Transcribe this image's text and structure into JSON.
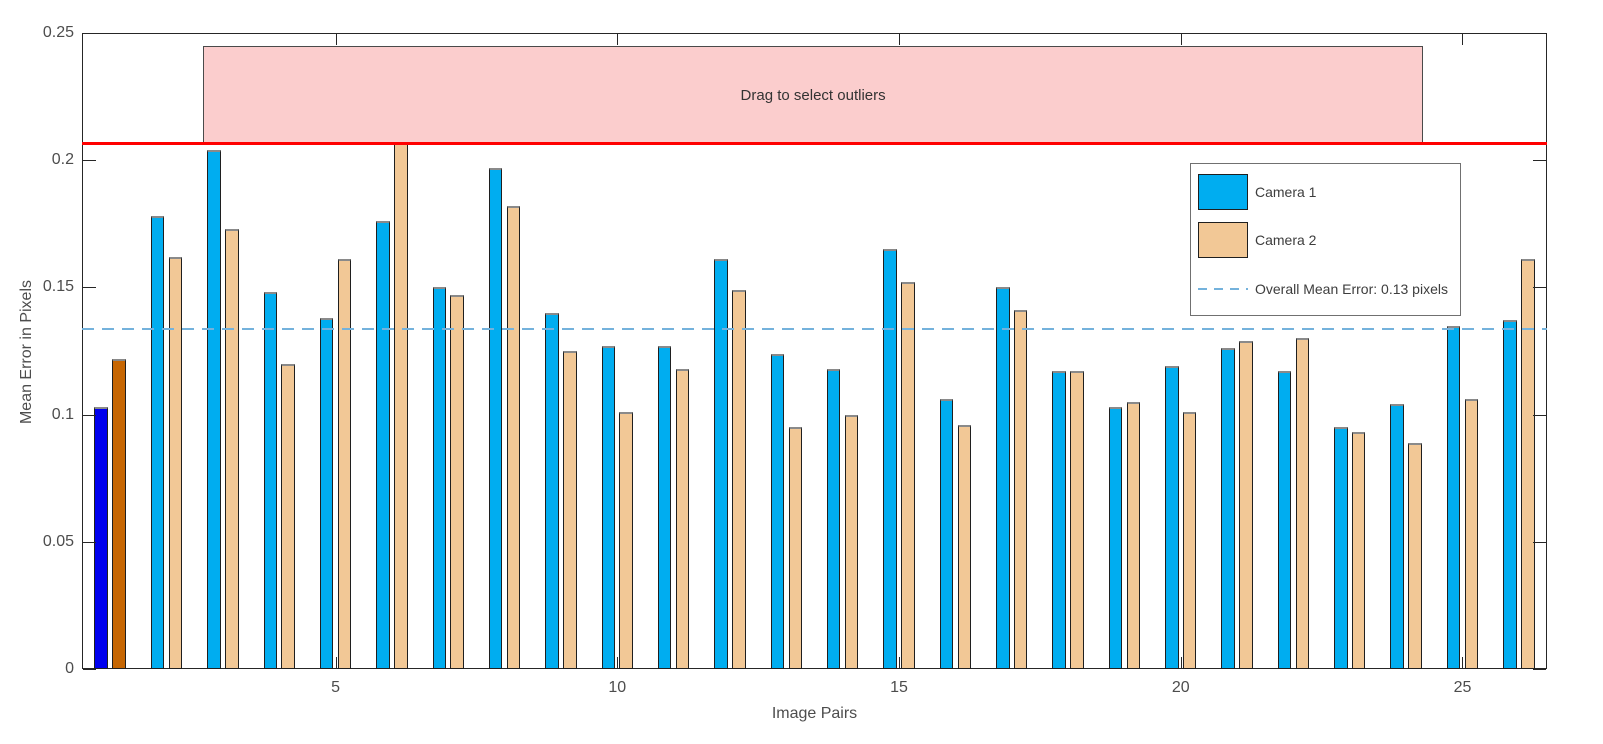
{
  "page": {
    "background": "#FFFFFF"
  },
  "chart_data": {
    "type": "bar",
    "title": "",
    "xlabel": "Image Pairs",
    "ylabel": "Mean Error in Pixels",
    "ylim": [
      0,
      0.25
    ],
    "yticks": [
      0,
      0.05,
      0.1,
      0.15,
      0.2,
      0.25
    ],
    "ytick_labels": [
      "0",
      "0.05",
      "0.1",
      "0.15",
      "0.2",
      "0.25"
    ],
    "xticks": [
      5,
      10,
      15,
      20,
      25
    ],
    "xtick_labels": [
      "5",
      "10",
      "15",
      "20",
      "25"
    ],
    "categories": [
      1,
      2,
      3,
      4,
      5,
      6,
      7,
      8,
      9,
      10,
      11,
      12,
      13,
      14,
      15,
      16,
      17,
      18,
      19,
      20,
      21,
      22,
      23,
      24,
      25,
      26
    ],
    "series": [
      {
        "name": "Camera 1",
        "color": "#00ADF0",
        "selected_color": "#0000EE",
        "values": [
          0.103,
          0.178,
          0.204,
          0.148,
          0.138,
          0.176,
          0.15,
          0.197,
          0.14,
          0.127,
          0.127,
          0.161,
          0.124,
          0.118,
          0.165,
          0.106,
          0.15,
          0.117,
          0.103,
          0.119,
          0.126,
          0.117,
          0.095,
          0.104,
          0.135,
          0.137
        ]
      },
      {
        "name": "Camera 2",
        "color": "#F2C896",
        "selected_color": "#C66602",
        "values": [
          0.122,
          0.162,
          0.173,
          0.12,
          0.161,
          0.207,
          0.147,
          0.182,
          0.125,
          0.101,
          0.118,
          0.149,
          0.095,
          0.1,
          0.152,
          0.096,
          0.141,
          0.117,
          0.105,
          0.101,
          0.129,
          0.13,
          0.093,
          0.089,
          0.106,
          0.161
        ]
      }
    ],
    "selected_pairs": [
      1
    ],
    "bar_edge_color": "#1F1F1F",
    "overall_mean": {
      "label": "Overall Mean Error: 0.13 pixels",
      "value": 0.1336,
      "color": "#74B2DC",
      "style": "dashed"
    },
    "threshold_line": {
      "value": 0.2066,
      "color": "#FF0000"
    },
    "outlier_band": {
      "label": "Drag to select outliers",
      "x_range": [
        2.65,
        24.3
      ],
      "y_top_value": 0.245,
      "fill": "#FBCDCD",
      "border": "#4A4A4A"
    },
    "legend": {
      "position": "upper-right",
      "items": [
        "Camera 1",
        "Camera 2",
        "Overall Mean Error: 0.13 pixels"
      ]
    },
    "axis_color": "#262626",
    "text_color": "#4D4D4D",
    "grid": false
  }
}
